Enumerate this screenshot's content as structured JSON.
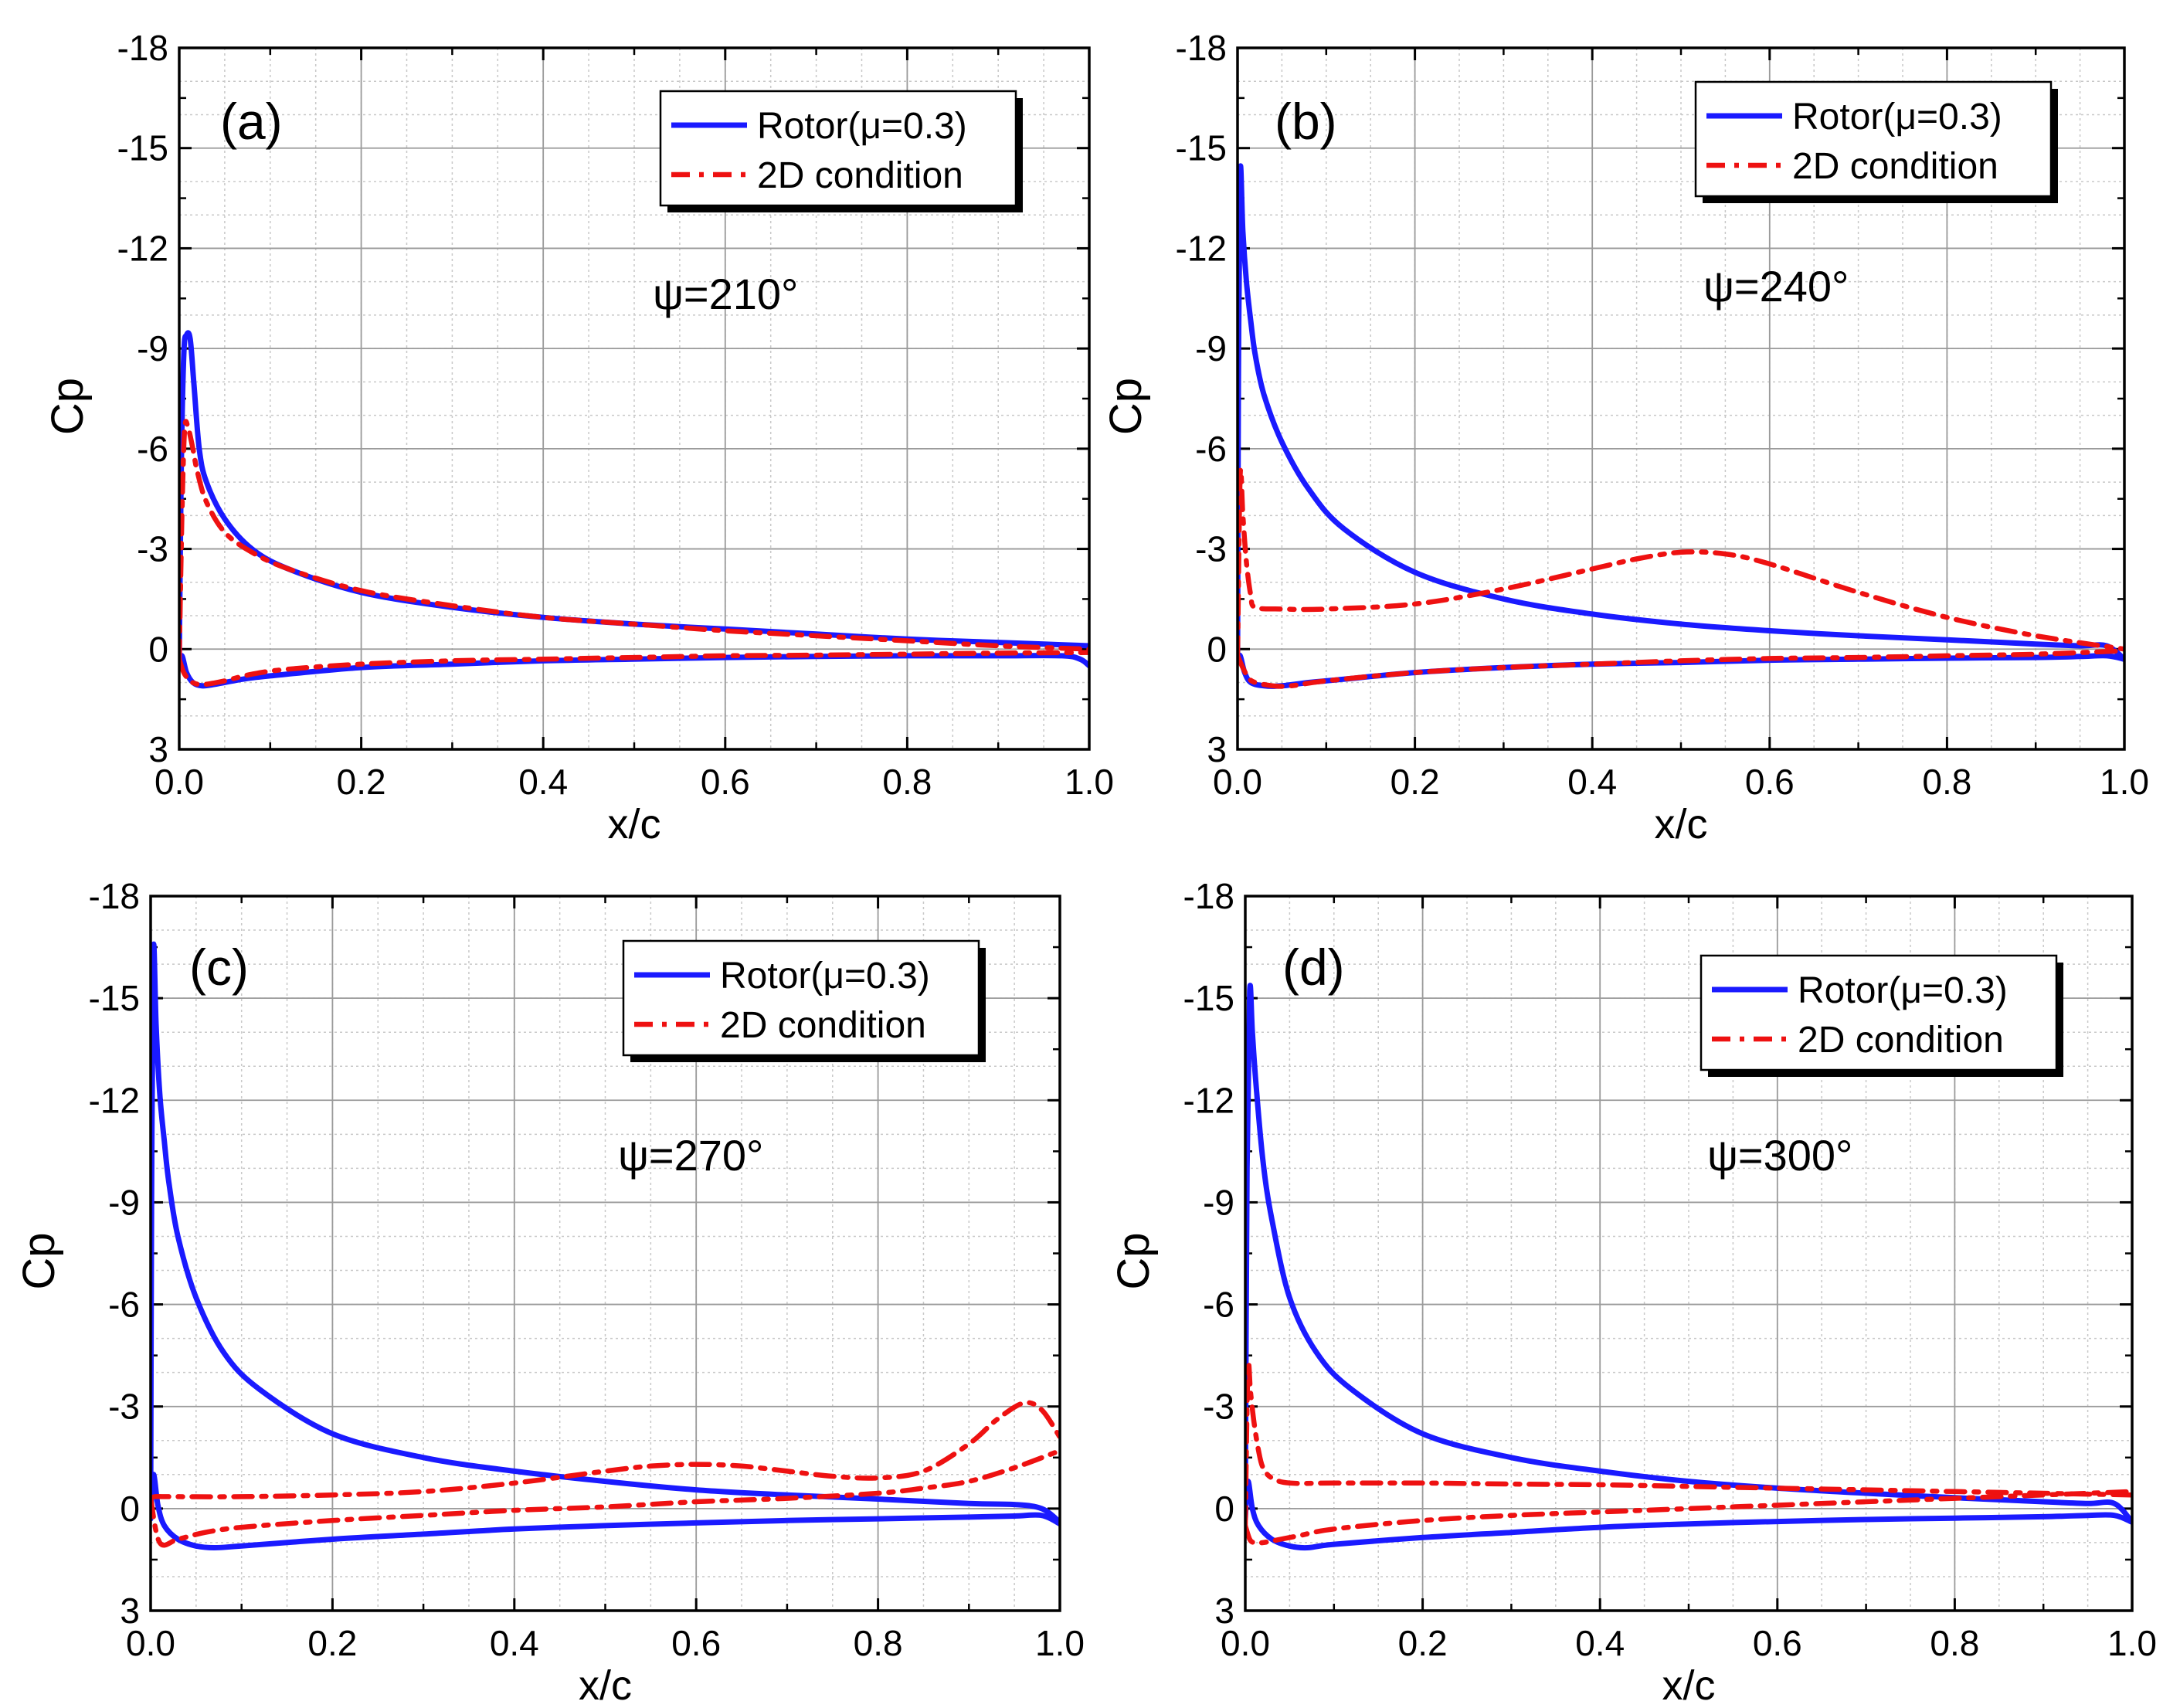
{
  "figure": {
    "panels_order": [
      "a",
      "b",
      "c",
      "d"
    ]
  },
  "chart_data": [
    {
      "type": "line",
      "panel_label": "(a)",
      "annotation": "ψ=210°",
      "xlabel": "x/c",
      "ylabel": "Cp",
      "xlim": [
        0.0,
        1.0
      ],
      "ylim": [
        3,
        -18
      ],
      "xticks": [
        0.0,
        0.2,
        0.4,
        0.6,
        0.8,
        1.0
      ],
      "xtick_labels": [
        "0.0",
        "0.2",
        "0.4",
        "0.6",
        "0.8",
        "1.0"
      ],
      "yticks": [
        -18,
        -15,
        -12,
        -9,
        -6,
        -3,
        0,
        3
      ],
      "ytick_labels": [
        "-18",
        "-15",
        "-12",
        "-9",
        "-6",
        "-3",
        "0",
        "3"
      ],
      "legend": [
        "Rotor(μ=0.3)",
        "2D condition"
      ],
      "colors": {
        "rotor": "#1a1aff",
        "twod": "#ee1111"
      },
      "series": [
        {
          "name": "Rotor(μ=0.3) upper",
          "style": "solid",
          "x": [
            0,
            0.002,
            0.005,
            0.008,
            0.012,
            0.016,
            0.022,
            0.03,
            0.05,
            0.08,
            0.12,
            0.2,
            0.3,
            0.4,
            0.5,
            0.6,
            0.7,
            0.8,
            0.9,
            0.95,
            1.0
          ],
          "y": [
            0.5,
            -5,
            -8.8,
            -9.4,
            -9.3,
            -8,
            -6,
            -5,
            -3.9,
            -3,
            -2.4,
            -1.7,
            -1.25,
            -0.95,
            -0.75,
            -0.6,
            -0.45,
            -0.3,
            -0.2,
            -0.15,
            -0.1
          ]
        },
        {
          "name": "Rotor(μ=0.3) lower",
          "style": "solid",
          "x": [
            0,
            0.003,
            0.008,
            0.015,
            0.025,
            0.04,
            0.07,
            0.1,
            0.2,
            0.3,
            0.4,
            0.5,
            0.6,
            0.7,
            0.8,
            0.9,
            0.97,
            0.99,
            1.0
          ],
          "y": [
            0.5,
            0.2,
            0.7,
            1.0,
            1.1,
            1.05,
            0.9,
            0.8,
            0.55,
            0.45,
            0.35,
            0.3,
            0.25,
            0.22,
            0.2,
            0.2,
            0.2,
            0.3,
            0.5
          ]
        },
        {
          "name": "2D condition upper",
          "style": "dashdot",
          "x": [
            0,
            0.003,
            0.006,
            0.01,
            0.015,
            0.02,
            0.03,
            0.05,
            0.08,
            0.12,
            0.2,
            0.3,
            0.4,
            0.5,
            0.6,
            0.7,
            0.8,
            0.9,
            1.0
          ],
          "y": [
            0.3,
            -4,
            -6.6,
            -6.6,
            -6,
            -5.3,
            -4.4,
            -3.5,
            -2.9,
            -2.4,
            -1.75,
            -1.3,
            -0.95,
            -0.75,
            -0.55,
            -0.4,
            -0.25,
            -0.1,
            0.0
          ]
        },
        {
          "name": "2D condition lower",
          "style": "dashdot",
          "x": [
            0,
            0.005,
            0.012,
            0.02,
            0.03,
            0.05,
            0.08,
            0.12,
            0.2,
            0.3,
            0.4,
            0.5,
            0.6,
            0.7,
            0.8,
            0.9,
            1.0
          ],
          "y": [
            0.3,
            0.7,
            0.95,
            1.05,
            1.05,
            0.95,
            0.75,
            0.6,
            0.45,
            0.35,
            0.3,
            0.25,
            0.2,
            0.18,
            0.15,
            0.12,
            0.1
          ]
        }
      ]
    },
    {
      "type": "line",
      "panel_label": "(b)",
      "annotation": "ψ=240°",
      "xlabel": "x/c",
      "ylabel": "Cp",
      "xlim": [
        0.0,
        1.0
      ],
      "ylim": [
        3,
        -18
      ],
      "xticks": [
        0.0,
        0.2,
        0.4,
        0.6,
        0.8,
        1.0
      ],
      "xtick_labels": [
        "0.0",
        "0.2",
        "0.4",
        "0.6",
        "0.8",
        "1.0"
      ],
      "yticks": [
        -18,
        -15,
        -12,
        -9,
        -6,
        -3,
        0,
        3
      ],
      "ytick_labels": [
        "-18",
        "-15",
        "-12",
        "-9",
        "-6",
        "-3",
        "0",
        "3"
      ],
      "legend": [
        "Rotor(μ=0.3)",
        "2D condition"
      ],
      "colors": {
        "rotor": "#1a1aff",
        "twod": "#ee1111"
      },
      "series": [
        {
          "name": "Rotor(μ=0.3) upper",
          "style": "solid",
          "x": [
            0,
            0.001,
            0.003,
            0.006,
            0.01,
            0.015,
            0.02,
            0.03,
            0.05,
            0.08,
            0.12,
            0.2,
            0.3,
            0.4,
            0.5,
            0.6,
            0.7,
            0.8,
            0.9,
            0.95,
            0.98,
            1.0
          ],
          "y": [
            0.3,
            -8,
            -14.3,
            -12.5,
            -11,
            -9.8,
            -8.8,
            -7.6,
            -6.2,
            -4.8,
            -3.6,
            -2.3,
            -1.5,
            -1.05,
            -0.75,
            -0.55,
            -0.4,
            -0.28,
            -0.15,
            -0.1,
            -0.1,
            0.3
          ]
        },
        {
          "name": "Rotor(μ=0.3) lower",
          "style": "solid",
          "x": [
            0,
            0.003,
            0.008,
            0.015,
            0.03,
            0.05,
            0.08,
            0.12,
            0.2,
            0.3,
            0.4,
            0.5,
            0.6,
            0.7,
            0.8,
            0.9,
            0.95,
            0.98,
            1.0
          ],
          "y": [
            0.3,
            0.2,
            0.7,
            1.0,
            1.1,
            1.1,
            1.0,
            0.9,
            0.7,
            0.55,
            0.45,
            0.4,
            0.33,
            0.3,
            0.27,
            0.25,
            0.22,
            0.2,
            0.3
          ]
        },
        {
          "name": "2D condition upper",
          "style": "dashdot",
          "x": [
            0,
            0.003,
            0.006,
            0.01,
            0.015,
            0.02,
            0.05,
            0.1,
            0.2,
            0.3,
            0.4,
            0.45,
            0.5,
            0.55,
            0.6,
            0.7,
            0.8,
            0.9,
            1.0
          ],
          "y": [
            0.2,
            -5.2,
            -4,
            -2.6,
            -1.6,
            -1.25,
            -1.2,
            -1.2,
            -1.35,
            -1.8,
            -2.4,
            -2.7,
            -2.9,
            -2.85,
            -2.55,
            -1.7,
            -0.95,
            -0.4,
            0.0
          ]
        },
        {
          "name": "2D condition lower",
          "style": "dashdot",
          "x": [
            0,
            0.005,
            0.012,
            0.02,
            0.04,
            0.06,
            0.1,
            0.2,
            0.3,
            0.4,
            0.5,
            0.6,
            0.7,
            0.8,
            0.9,
            1.0
          ],
          "y": [
            0.2,
            0.5,
            0.85,
            1.0,
            1.1,
            1.1,
            0.95,
            0.7,
            0.55,
            0.45,
            0.35,
            0.28,
            0.25,
            0.2,
            0.15,
            0.05
          ]
        }
      ]
    },
    {
      "type": "line",
      "panel_label": "(c)",
      "annotation": "ψ=270°",
      "xlabel": "x/c",
      "ylabel": "Cp",
      "xlim": [
        0.0,
        1.0
      ],
      "ylim": [
        3,
        -18
      ],
      "xticks": [
        0.0,
        0.2,
        0.4,
        0.6,
        0.8,
        1.0
      ],
      "xtick_labels": [
        "0.0",
        "0.2",
        "0.4",
        "0.6",
        "0.8",
        "1.0"
      ],
      "yticks": [
        -18,
        -15,
        -12,
        -9,
        -6,
        -3,
        0,
        3
      ],
      "ytick_labels": [
        "-18",
        "-15",
        "-12",
        "-9",
        "-6",
        "-3",
        "0",
        "3"
      ],
      "legend": [
        "Rotor(μ=0.3)",
        "2D condition"
      ],
      "colors": {
        "rotor": "#1a1aff",
        "twod": "#ee1111"
      },
      "series": [
        {
          "name": "Rotor(μ=0.3) upper",
          "style": "solid",
          "x": [
            0,
            0.001,
            0.003,
            0.006,
            0.01,
            0.015,
            0.02,
            0.03,
            0.05,
            0.08,
            0.12,
            0.2,
            0.3,
            0.4,
            0.5,
            0.6,
            0.7,
            0.8,
            0.9,
            0.95,
            0.98,
            1.0
          ],
          "y": [
            0.3,
            -9,
            -16.4,
            -14.2,
            -12.2,
            -10.8,
            -9.6,
            -8,
            -6.2,
            -4.6,
            -3.5,
            -2.2,
            -1.5,
            -1.1,
            -0.8,
            -0.55,
            -0.4,
            -0.28,
            -0.15,
            -0.12,
            0.0,
            0.4
          ]
        },
        {
          "name": "Rotor(μ=0.3) lower",
          "style": "solid",
          "x": [
            0,
            0.003,
            0.008,
            0.015,
            0.03,
            0.05,
            0.07,
            0.1,
            0.2,
            0.3,
            0.4,
            0.5,
            0.6,
            0.7,
            0.8,
            0.9,
            0.95,
            0.98,
            1.0
          ],
          "y": [
            0.3,
            -1,
            -0.1,
            0.5,
            0.9,
            1.1,
            1.15,
            1.1,
            0.9,
            0.75,
            0.6,
            0.5,
            0.42,
            0.35,
            0.3,
            0.25,
            0.22,
            0.2,
            0.45
          ]
        },
        {
          "name": "2D condition upper",
          "style": "dashdot",
          "x": [
            0,
            0.005,
            0.02,
            0.1,
            0.2,
            0.3,
            0.4,
            0.5,
            0.55,
            0.6,
            0.65,
            0.7,
            0.75,
            0.8,
            0.85,
            0.9,
            0.93,
            0.96,
            0.98,
            1.0
          ],
          "y": [
            -0.3,
            -0.35,
            -0.35,
            -0.35,
            -0.4,
            -0.5,
            -0.75,
            -1.1,
            -1.25,
            -1.3,
            -1.25,
            -1.1,
            -0.95,
            -0.9,
            -1.1,
            -1.9,
            -2.6,
            -3.1,
            -2.9,
            -2.1
          ]
        },
        {
          "name": "2D condition lower",
          "style": "dashdot",
          "x": [
            0,
            0.01,
            0.03,
            0.06,
            0.1,
            0.2,
            0.3,
            0.4,
            0.5,
            0.6,
            0.7,
            0.8,
            0.85,
            0.9,
            0.95,
            1.0
          ],
          "y": [
            -0.3,
            1.0,
            0.9,
            0.7,
            0.55,
            0.35,
            0.2,
            0.05,
            -0.05,
            -0.2,
            -0.3,
            -0.45,
            -0.6,
            -0.8,
            -1.2,
            -1.7
          ]
        }
      ]
    },
    {
      "type": "line",
      "panel_label": "(d)",
      "annotation": "ψ=300°",
      "xlabel": "x/c",
      "ylabel": "Cp",
      "xlim": [
        0.0,
        1.0
      ],
      "ylim": [
        3,
        -18
      ],
      "xticks": [
        0.0,
        0.2,
        0.4,
        0.6,
        0.8,
        1.0
      ],
      "xtick_labels": [
        "0.0",
        "0.2",
        "0.4",
        "0.6",
        "0.8",
        "1.0"
      ],
      "yticks": [
        -18,
        -15,
        -12,
        -9,
        -6,
        -3,
        0,
        3
      ],
      "ytick_labels": [
        "-18",
        "-15",
        "-12",
        "-9",
        "-6",
        "-3",
        "0",
        "3"
      ],
      "legend": [
        "Rotor(μ=0.3)",
        "2D condition"
      ],
      "colors": {
        "rotor": "#1a1aff",
        "twod": "#ee1111"
      },
      "series": [
        {
          "name": "Rotor(μ=0.3) upper",
          "style": "solid",
          "x": [
            0,
            0.002,
            0.005,
            0.008,
            0.012,
            0.02,
            0.03,
            0.05,
            0.08,
            0.12,
            0.2,
            0.3,
            0.4,
            0.5,
            0.6,
            0.7,
            0.8,
            0.9,
            0.95,
            0.98,
            1.0
          ],
          "y": [
            0.3,
            -10,
            -15.2,
            -14,
            -12.5,
            -10.2,
            -8.5,
            -6.2,
            -4.6,
            -3.5,
            -2.2,
            -1.5,
            -1.1,
            -0.8,
            -0.6,
            -0.45,
            -0.32,
            -0.2,
            -0.15,
            -0.15,
            0.4
          ]
        },
        {
          "name": "Rotor(μ=0.3) lower",
          "style": "solid",
          "x": [
            0,
            0.003,
            0.008,
            0.015,
            0.03,
            0.05,
            0.07,
            0.1,
            0.2,
            0.3,
            0.4,
            0.5,
            0.6,
            0.7,
            0.8,
            0.9,
            0.95,
            0.98,
            1.0
          ],
          "y": [
            0.3,
            -0.8,
            0.0,
            0.5,
            0.9,
            1.1,
            1.15,
            1.05,
            0.85,
            0.7,
            0.55,
            0.45,
            0.38,
            0.32,
            0.28,
            0.24,
            0.2,
            0.2,
            0.4
          ]
        },
        {
          "name": "2D condition upper",
          "style": "dashdot",
          "x": [
            0,
            0.003,
            0.006,
            0.01,
            0.015,
            0.02,
            0.03,
            0.05,
            0.1,
            0.2,
            0.3,
            0.4,
            0.5,
            0.6,
            0.7,
            0.8,
            0.9,
            1.0
          ],
          "y": [
            0.5,
            -4.1,
            -3.4,
            -2.5,
            -1.7,
            -1.2,
            -0.9,
            -0.75,
            -0.75,
            -0.75,
            -0.72,
            -0.7,
            -0.65,
            -0.6,
            -0.55,
            -0.5,
            -0.45,
            -0.4
          ]
        },
        {
          "name": "2D condition lower",
          "style": "dashdot",
          "x": [
            0,
            0.005,
            0.01,
            0.02,
            0.04,
            0.06,
            0.1,
            0.2,
            0.3,
            0.4,
            0.5,
            0.6,
            0.7,
            0.8,
            0.9,
            1.0
          ],
          "y": [
            0.5,
            0.9,
            1.0,
            1.0,
            0.9,
            0.8,
            0.6,
            0.35,
            0.2,
            0.1,
            0.0,
            -0.1,
            -0.2,
            -0.3,
            -0.4,
            -0.5
          ]
        }
      ]
    }
  ]
}
